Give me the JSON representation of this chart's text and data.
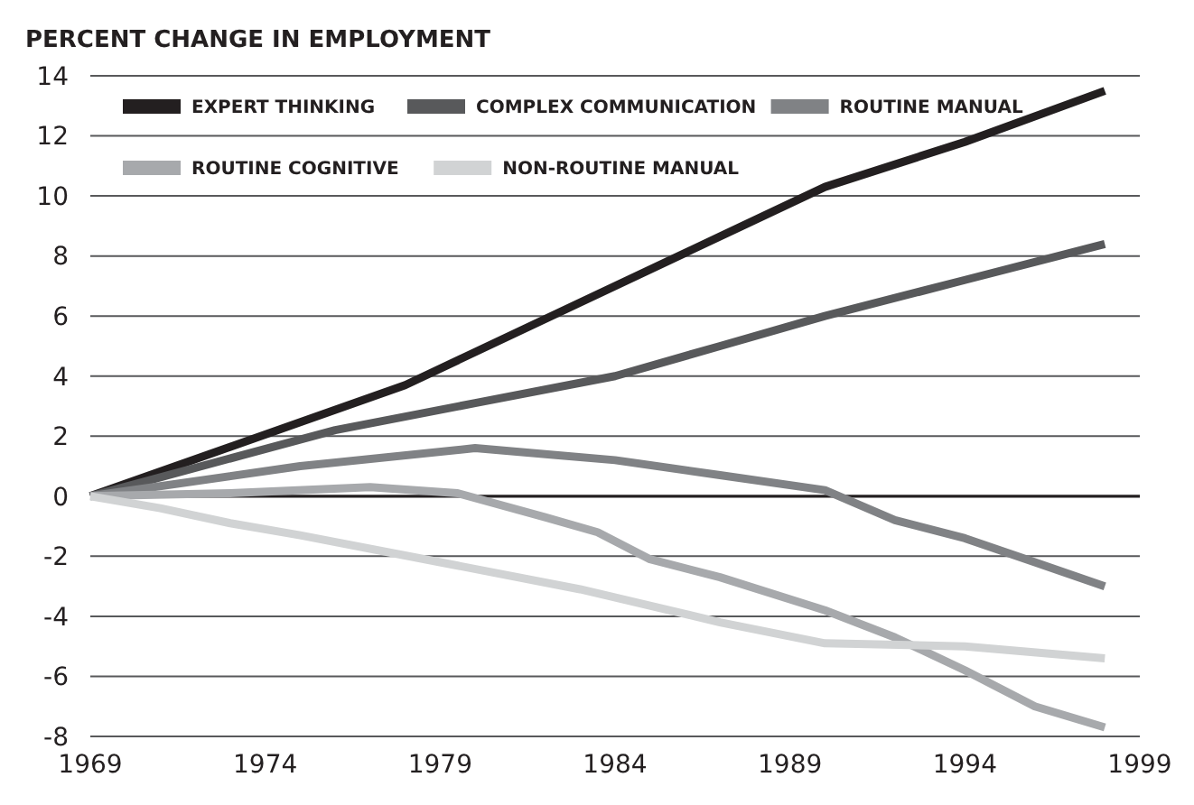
{
  "chart_data": {
    "type": "line",
    "title": "PERCENT CHANGE IN EMPLOYMENT",
    "xlim": [
      1969,
      1999
    ],
    "xticks": [
      1969,
      1974,
      1979,
      1984,
      1989,
      1994,
      1999
    ],
    "ylim": [
      -8,
      14
    ],
    "yticks": [
      -8,
      -6,
      -4,
      -2,
      0,
      2,
      4,
      6,
      8,
      10,
      12,
      14
    ],
    "grid": "y",
    "legend": "top left",
    "marker": "none",
    "line_style": "solid",
    "series": [
      {
        "name": "EXPERT THINKING",
        "color": "#231f20",
        "x": [
          1969,
          1978,
          1990,
          1994,
          1998
        ],
        "values": [
          0,
          3.7,
          10.3,
          11.8,
          13.5
        ]
      },
      {
        "name": "COMPLEX COMMUNICATION",
        "color": "#58595b",
        "x": [
          1969,
          1976,
          1980,
          1984,
          1987,
          1990,
          1994,
          1998
        ],
        "values": [
          0,
          2.2,
          3.1,
          4,
          5,
          6,
          7.2,
          8.4
        ]
      },
      {
        "name": "ROUTINE MANUAL",
        "color": "#808285",
        "x": [
          1969,
          1975,
          1980,
          1984,
          1987,
          1990,
          1992,
          1994,
          1996,
          1998
        ],
        "values": [
          0,
          1,
          1.6,
          1.2,
          0.7,
          0.2,
          -0.8,
          -1.4,
          -2.2,
          -3
        ]
      },
      {
        "name": "ROUTINE COGNITIVE",
        "color": "#a7a9ac",
        "x": [
          1969,
          1973,
          1977,
          1979.5,
          1982,
          1983.5,
          1985,
          1987,
          1990,
          1992,
          1994,
          1996,
          1998
        ],
        "values": [
          0,
          0.1,
          0.3,
          0.1,
          -0.7,
          -1.2,
          -2.1,
          -2.7,
          -3.8,
          -4.7,
          -5.8,
          -7,
          -7.7
        ]
      },
      {
        "name": "NON-ROUTINE MANUAL",
        "color": "#d1d3d4",
        "x": [
          1969,
          1971,
          1973,
          1975,
          1979,
          1983,
          1987,
          1990,
          1994,
          1998
        ],
        "values": [
          0,
          -0.4,
          -0.9,
          -1.3,
          -2.2,
          -3.1,
          -4.2,
          -4.9,
          -5,
          -5.4
        ]
      }
    ]
  }
}
